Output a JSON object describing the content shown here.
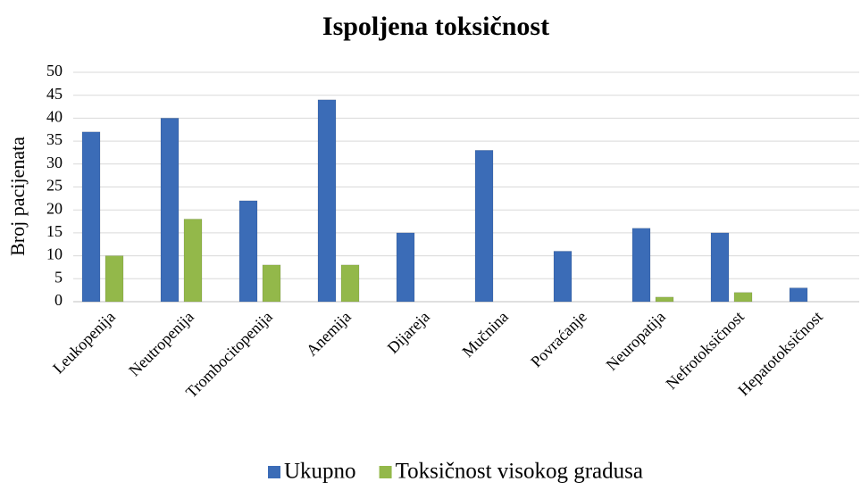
{
  "chart_data": {
    "type": "bar",
    "title": "Ispoljena toksičnost",
    "y_label": "Broj pacijenata",
    "categories": [
      "Leukopenija",
      "Neutropenija",
      "Trombocitopenija",
      "Anemija",
      "Dijareja",
      "Mučnina",
      "Povraćanje",
      "Neuropatija",
      "Nefrotoksičnost",
      "Hepatotoksičnost"
    ],
    "series": [
      {
        "name": "Ukupno",
        "color": "#3b6cb7",
        "values": [
          37,
          40,
          22,
          44,
          15,
          33,
          11,
          16,
          15,
          3
        ]
      },
      {
        "name": "Toksičnost visokog gradusa",
        "color": "#93b84a",
        "values": [
          10,
          18,
          8,
          8,
          0,
          0,
          0,
          1,
          2,
          0
        ]
      }
    ],
    "ylim": [
      0,
      50
    ],
    "yticks": [
      0,
      5,
      10,
      15,
      20,
      25,
      30,
      35,
      40,
      45,
      50
    ],
    "grid": true,
    "legend": "bottom"
  }
}
